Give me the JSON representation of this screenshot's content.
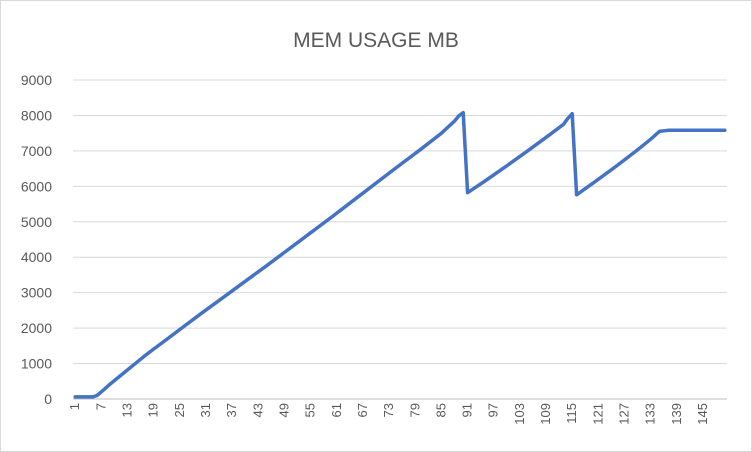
{
  "chart_data": {
    "type": "line",
    "title": "MEM USAGE MB",
    "xlabel": "",
    "ylabel": "",
    "ylim": [
      0,
      9000
    ],
    "yticks": [
      0,
      1000,
      2000,
      3000,
      4000,
      5000,
      6000,
      7000,
      8000,
      9000
    ],
    "xlim": [
      1,
      150
    ],
    "xticks": [
      1,
      7,
      13,
      19,
      25,
      31,
      37,
      43,
      49,
      55,
      61,
      67,
      73,
      79,
      85,
      91,
      97,
      103,
      109,
      115,
      121,
      127,
      133,
      139,
      145
    ],
    "grid": "horizontal",
    "legend": "none",
    "color": "#4472C4",
    "series": [
      {
        "x": [
          1,
          2,
          3,
          4,
          5,
          6,
          7,
          9,
          11,
          13,
          15,
          17,
          19,
          21,
          25,
          30,
          35,
          40,
          45,
          50,
          55,
          60,
          65,
          70,
          75,
          80,
          85,
          88,
          89,
          90,
          91,
          95,
          100,
          105,
          110,
          113,
          114,
          115,
          116,
          120,
          125,
          130,
          133,
          135,
          137,
          140,
          145,
          150
        ],
        "y": [
          60,
          60,
          60,
          60,
          60,
          100,
          200,
          420,
          620,
          820,
          1020,
          1220,
          1410,
          1590,
          1960,
          2420,
          2870,
          3320,
          3770,
          4230,
          4690,
          5150,
          5620,
          6090,
          6560,
          7020,
          7500,
          7840,
          7990,
          8080,
          5820,
          6150,
          6580,
          7020,
          7470,
          7750,
          7920,
          8050,
          5760,
          6110,
          6560,
          7030,
          7330,
          7550,
          7580,
          7580,
          7580,
          7580
        ]
      }
    ]
  }
}
